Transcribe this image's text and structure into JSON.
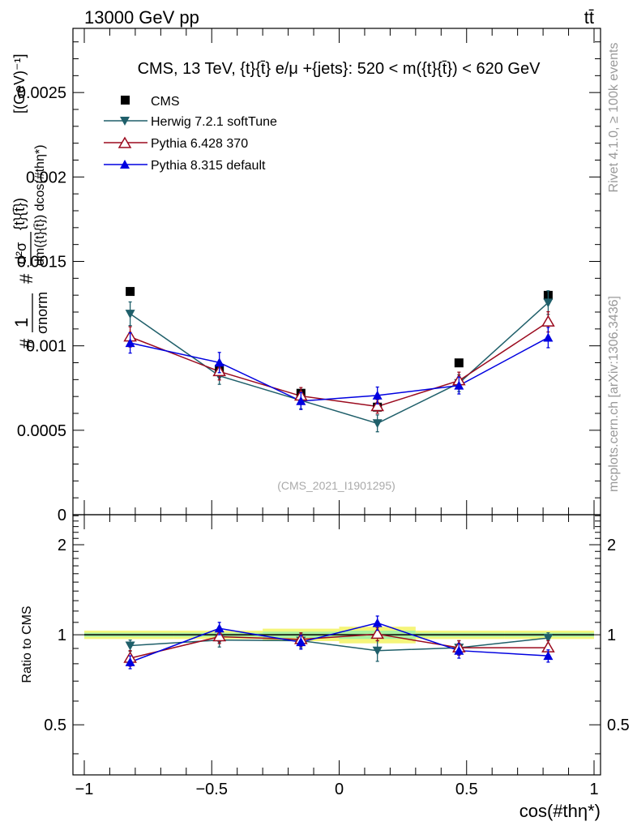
{
  "header": {
    "energy_label": "13000 GeV pp",
    "process_label": "tt̄"
  },
  "side_labels": {
    "rivet": "Rivet 4.1.0, ≥ 100k events",
    "mcplots": "mcplots.cern.ch [arXiv:1306.3436]"
  },
  "chart_data": [
    {
      "type": "scatter",
      "panel": "main",
      "title": "CMS, 13 TeV, {t}{t̄} e/μ +{jets}: 520 < m({t}{t̄}) < 620 GeV",
      "watermark": "(CMS_2021_I1901295)",
      "xlabel": "cos(#thη*)",
      "ylabel_parts": [
        "#",
        "1",
        "σnorm",
        "#",
        "d²σ",
        "dm({t}{t̄}) dcos(#thη*)",
        "{t}{t̄})",
        "[(GeV)⁻¹]"
      ],
      "xlim": [
        -1.0,
        1.0
      ],
      "ylim": [
        0,
        0.00288
      ],
      "y_ticks": [
        {
          "value": 0.0005,
          "label": "0.0005"
        },
        {
          "value": 0.001,
          "label": "0.001"
        },
        {
          "value": 0.0015,
          "label": "0.0015"
        },
        {
          "value": 0.002,
          "label": "0.002"
        },
        {
          "value": 0.0025,
          "label": "0.0025"
        },
        {
          "value": 0.0,
          "label": "0"
        }
      ],
      "x": [
        -0.82,
        -0.47,
        -0.15,
        0.15,
        0.47,
        0.82
      ],
      "x_edges": [
        -1.0,
        -0.65,
        -0.3,
        0.0,
        0.3,
        0.65,
        1.0
      ],
      "legend_position": "top-left",
      "series": [
        {
          "name": "CMS",
          "color": "#000000",
          "marker": "square",
          "values": [
            0.001322,
            0.000862,
            0.000719,
            0.000637,
            0.000899,
            0.001299
          ],
          "errors": [
            1.5e-05,
            1e-05,
            1e-05,
            1e-05,
            1.2e-05,
            1.5e-05
          ]
        },
        {
          "name": "Herwig 7.2.1 softTune",
          "color": "#1f5f6a",
          "marker": "triangle-down",
          "values": [
            0.00119,
            0.000822,
            0.000677,
            0.000541,
            0.000779,
            0.001256
          ],
          "errors": [
            7e-05,
            5e-05,
            5e-05,
            5e-05,
            5e-05,
            7e-05
          ]
        },
        {
          "name": "Pythia 6.428 370",
          "color": "#9b0a1e",
          "marker": "triangle-open",
          "values": [
            0.001053,
            0.000848,
            0.000703,
            0.000641,
            0.000794,
            0.001142
          ],
          "errors": [
            6e-05,
            5e-05,
            5e-05,
            4e-05,
            5e-05,
            6e-05
          ]
        },
        {
          "name": "Pythia 8.315 default",
          "color": "#0000e0",
          "marker": "triangle-up",
          "values": [
            0.001017,
            0.000901,
            0.000673,
            0.000706,
            0.000765,
            0.001049
          ],
          "errors": [
            6e-05,
            6e-05,
            5e-05,
            5e-05,
            5e-05,
            6e-05
          ]
        }
      ]
    },
    {
      "type": "line",
      "panel": "ratio",
      "xlabel": "cos(#thη*)",
      "ylabel": "Ratio to CMS",
      "xlim": [
        -1.0,
        1.0
      ],
      "ylim": [
        0.34,
        2.52
      ],
      "y_ticks": [
        {
          "value": 0.5,
          "label": "0.5"
        },
        {
          "value": 1.0,
          "label": "1"
        },
        {
          "value": 2.0,
          "label": "2"
        }
      ],
      "x_ticks": [
        {
          "value": -1.0,
          "label": "−1"
        },
        {
          "value": -0.5,
          "label": "−0.5"
        },
        {
          "value": 0.0,
          "label": "0"
        },
        {
          "value": 0.5,
          "label": "0.5"
        },
        {
          "value": 1.0,
          "label": "1"
        }
      ],
      "x": [
        -0.82,
        -0.47,
        -0.15,
        0.15,
        0.47,
        0.82
      ],
      "x_edges": [
        -1.0,
        -0.65,
        -0.3,
        0.0,
        0.3,
        0.65,
        1.0
      ],
      "cms_band_halfwidth": [
        0.02,
        0.02,
        0.03,
        0.04,
        0.02,
        0.02
      ],
      "series": [
        {
          "name": "Herwig 7.2.1 softTune",
          "color": "#1f5f6a",
          "marker": "triangle-down",
          "values": [
            0.92,
            0.96,
            0.955,
            0.885,
            0.905,
            0.975
          ],
          "errors": [
            0.04,
            0.05,
            0.05,
            0.07,
            0.05,
            0.04
          ]
        },
        {
          "name": "Pythia 6.428 370",
          "color": "#9b0a1e",
          "marker": "triangle-open",
          "values": [
            0.835,
            0.985,
            0.965,
            1.005,
            0.905,
            0.905
          ],
          "errors": [
            0.05,
            0.05,
            0.05,
            0.05,
            0.05,
            0.05
          ]
        },
        {
          "name": "Pythia 8.315 default",
          "color": "#0000e0",
          "marker": "triangle-up",
          "values": [
            0.81,
            1.05,
            0.945,
            1.095,
            0.885,
            0.85
          ],
          "errors": [
            0.04,
            0.05,
            0.05,
            0.06,
            0.05,
            0.04
          ]
        }
      ]
    }
  ]
}
